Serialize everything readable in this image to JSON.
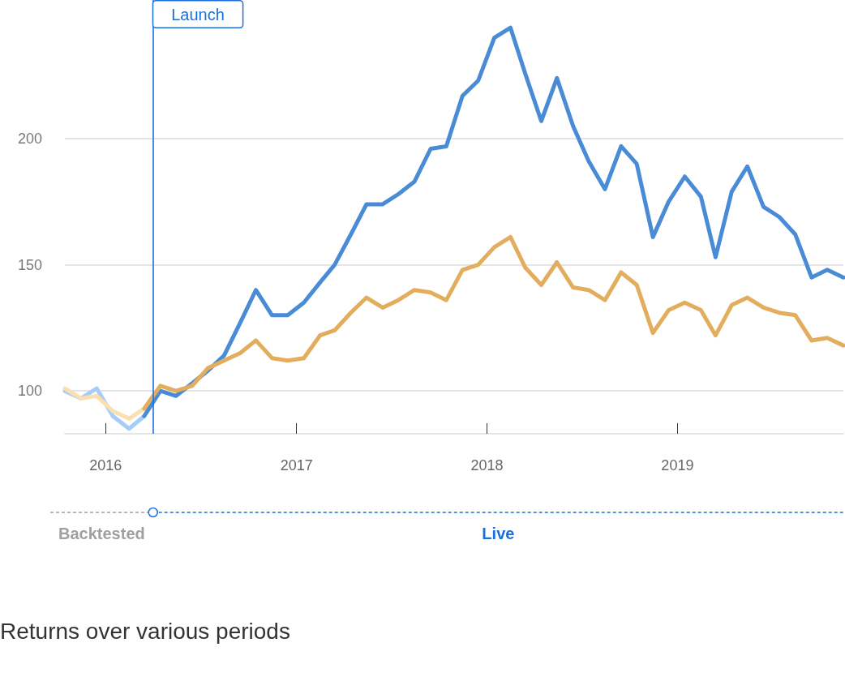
{
  "chart_data": {
    "type": "line",
    "annotations": [
      "Backtested",
      "Live",
      "Returns over various periods"
    ],
    "xlim": [
      "2015-10-15",
      "2019-11-15"
    ],
    "xticks": [
      "2016",
      "2017",
      "2018",
      "2019"
    ],
    "ylim": [
      83,
      255
    ],
    "yticks": [
      100,
      150,
      200
    ],
    "grid": "y",
    "marker": "none",
    "line_style": "solid",
    "ref_lines": [
      {
        "axis": "x",
        "value": "2016-04-01",
        "label": "Launch",
        "color": "#1a6fdf"
      }
    ],
    "series": [
      {
        "color": "#a6cdf7",
        "x": [
          "2015-10-15",
          "2015-11-15",
          "2015-12-15",
          "2016-01-15",
          "2016-02-15",
          "2016-03-15"
        ],
        "values": [
          100,
          97,
          101,
          90,
          85,
          90
        ]
      },
      {
        "color": "#fbdfb0",
        "x": [
          "2015-10-15",
          "2015-11-15",
          "2015-12-15",
          "2016-01-15",
          "2016-02-15",
          "2016-03-15"
        ],
        "values": [
          101,
          97,
          98,
          92,
          89,
          93
        ]
      },
      {
        "color": "#4a8bd6",
        "x": [
          "2016-03-15",
          "2016-04-15",
          "2016-05-15",
          "2016-06-15",
          "2016-07-15",
          "2016-08-15",
          "2016-09-15",
          "2016-10-15",
          "2016-11-15",
          "2016-12-15",
          "2017-01-15",
          "2017-02-15",
          "2017-03-15",
          "2017-04-15",
          "2017-05-15",
          "2017-06-15",
          "2017-07-15",
          "2017-08-15",
          "2017-09-15",
          "2017-10-15",
          "2017-11-15",
          "2017-12-15",
          "2018-01-15",
          "2018-02-15",
          "2018-03-15",
          "2018-04-15",
          "2018-05-15",
          "2018-06-15",
          "2018-07-15",
          "2018-08-15",
          "2018-09-15",
          "2018-10-15",
          "2018-11-15",
          "2018-12-15",
          "2019-01-15",
          "2019-02-15",
          "2019-03-15",
          "2019-04-15",
          "2019-05-15",
          "2019-06-15",
          "2019-07-15",
          "2019-08-15",
          "2019-09-15",
          "2019-10-15",
          "2019-11-15"
        ],
        "values": [
          90,
          100,
          98,
          103,
          108,
          114,
          127,
          140,
          130,
          130,
          135,
          143,
          150,
          162,
          174,
          174,
          178,
          183,
          196,
          197,
          217,
          223,
          240,
          244,
          226,
          207,
          224,
          205,
          191,
          180,
          197,
          190,
          161,
          175,
          185,
          177,
          153,
          179,
          189,
          173,
          169,
          162,
          145,
          148,
          145
        ]
      },
      {
        "color": "#e3ad5e",
        "x": [
          "2016-03-15",
          "2016-04-15",
          "2016-05-15",
          "2016-06-15",
          "2016-07-15",
          "2016-08-15",
          "2016-09-15",
          "2016-10-15",
          "2016-11-15",
          "2016-12-15",
          "2017-01-15",
          "2017-02-15",
          "2017-03-15",
          "2017-04-15",
          "2017-05-15",
          "2017-06-15",
          "2017-07-15",
          "2017-08-15",
          "2017-09-15",
          "2017-10-15",
          "2017-11-15",
          "2017-12-15",
          "2018-01-15",
          "2018-02-15",
          "2018-03-15",
          "2018-04-15",
          "2018-05-15",
          "2018-06-15",
          "2018-07-15",
          "2018-08-15",
          "2018-09-15",
          "2018-10-15",
          "2018-11-15",
          "2018-12-15",
          "2019-01-15",
          "2019-02-15",
          "2019-03-15",
          "2019-04-15",
          "2019-05-15",
          "2019-06-15",
          "2019-07-15",
          "2019-08-15",
          "2019-09-15",
          "2019-10-15",
          "2019-11-15"
        ],
        "values": [
          93,
          102,
          100,
          102,
          109,
          112,
          115,
          120,
          113,
          112,
          113,
          122,
          124,
          131,
          137,
          133,
          136,
          140,
          139,
          136,
          148,
          150,
          157,
          161,
          149,
          142,
          151,
          141,
          140,
          136,
          147,
          142,
          123,
          132,
          135,
          132,
          122,
          134,
          137,
          133,
          131,
          130,
          120,
          121,
          118
        ]
      }
    ]
  }
}
